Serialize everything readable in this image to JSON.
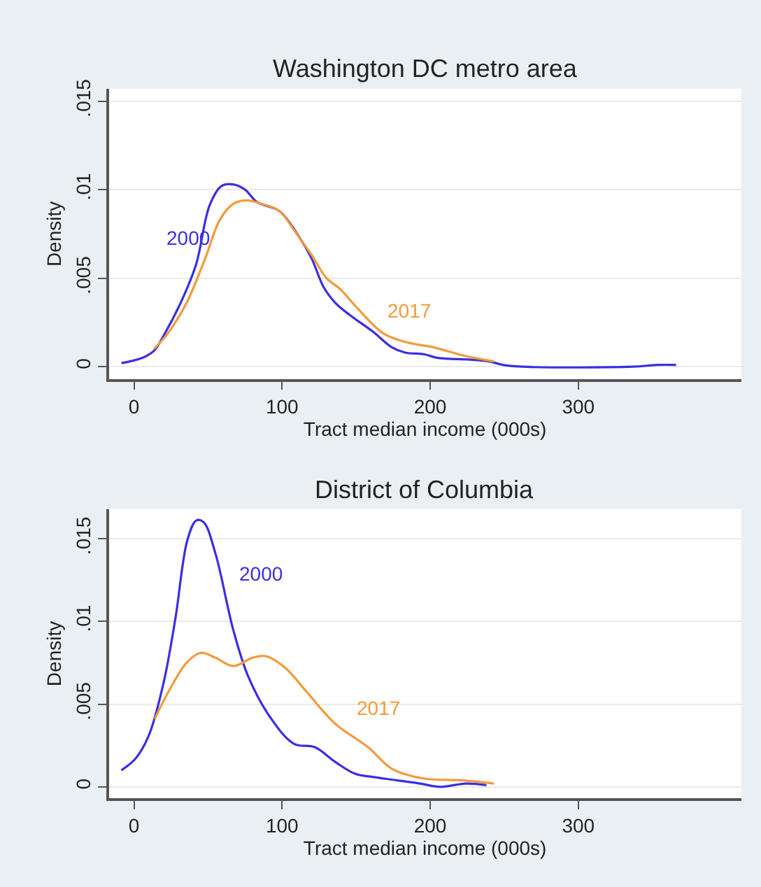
{
  "chart_data": [
    {
      "type": "line",
      "title": "Washington DC metro area",
      "xlabel": "Tract median income (000s)",
      "ylabel": "Density",
      "xlim": [
        -17,
        410
      ],
      "ylim": [
        -0.0007,
        0.0157
      ],
      "xticks": [
        0,
        100,
        200,
        300
      ],
      "yticks": [
        {
          "value": 0,
          "label": "0"
        },
        {
          "value": 0.005,
          "label": ".005"
        },
        {
          "value": 0.01,
          "label": ".01"
        },
        {
          "value": 0.015,
          "label": ".015"
        }
      ],
      "grid": "y",
      "series": [
        {
          "name": "2000",
          "color": "#3b2ee0",
          "x": [
            -8.5,
            5.7,
            13.5,
            21,
            32,
            42,
            51,
            59,
            67,
            75,
            83,
            98,
            111,
            120,
            128,
            136,
            146,
            161,
            174,
            183,
            196,
            205,
            227,
            240,
            249,
            262,
            337,
            353,
            366
          ],
          "values": [
            0.0002,
            0.0005,
            0.0009,
            0.0019,
            0.0037,
            0.0058,
            0.0091,
            0.0102,
            0.0103,
            0.01,
            0.0093,
            0.0088,
            0.0074,
            0.0061,
            0.0045,
            0.0036,
            0.0029,
            0.002,
            0.0011,
            0.0008,
            0.0007,
            0.0005,
            0.0004,
            0.0003,
            0.0001,
            0,
            0,
            0.0001,
            0.0001
          ]
        },
        {
          "name": "2017",
          "color": "#f39a3a",
          "x": [
            13.5,
            23,
            35.5,
            48,
            58,
            67,
            76,
            86,
            98,
            109,
            120,
            130,
            139,
            152,
            168,
            183,
            202,
            224,
            243
          ],
          "values": [
            0.001,
            0.0019,
            0.0036,
            0.0061,
            0.0083,
            0.0092,
            0.0094,
            0.0092,
            0.0088,
            0.0076,
            0.0063,
            0.005,
            0.0044,
            0.0032,
            0.0019,
            0.0014,
            0.0011,
            0.0006,
            0.0003
          ]
        }
      ]
    },
    {
      "type": "line",
      "title": "District of Columbia",
      "xlabel": "Tract median income (000s)",
      "ylabel": "Density",
      "xlim": [
        -17,
        410
      ],
      "ylim": [
        -0.0007,
        0.0168
      ],
      "xticks": [
        0,
        100,
        200,
        300
      ],
      "yticks": [
        {
          "value": 0,
          "label": "0"
        },
        {
          "value": 0.005,
          "label": ".005"
        },
        {
          "value": 0.01,
          "label": ".01"
        },
        {
          "value": 0.015,
          "label": ".015"
        }
      ],
      "grid": "y",
      "series": [
        {
          "name": "2000",
          "color": "#3b2ee0",
          "x": [
            -8.5,
            1,
            10,
            20,
            28,
            36,
            42,
            47,
            55,
            67,
            77,
            92,
            108,
            122,
            136,
            149,
            161,
            177,
            193,
            207,
            224,
            238
          ],
          "values": [
            0.001,
            0.0017,
            0.0031,
            0.0063,
            0.0102,
            0.0149,
            0.0161,
            0.016,
            0.0141,
            0.0095,
            0.0067,
            0.0042,
            0.0026,
            0.0024,
            0.0015,
            0.0008,
            0.0006,
            0.0004,
            0.0002,
            0,
            0.0002,
            0.0001
          ]
        },
        {
          "name": "2017",
          "color": "#f39a3a",
          "x": [
            14,
            23,
            35.5,
            45,
            55,
            67,
            80,
            89,
            102,
            117,
            136,
            158,
            174,
            196,
            221,
            243
          ],
          "values": [
            0.0041,
            0.0057,
            0.0075,
            0.0081,
            0.0078,
            0.0073,
            0.0078,
            0.0079,
            0.0072,
            0.0057,
            0.0038,
            0.0024,
            0.0011,
            0.0005,
            0.0004,
            0.0002
          ]
        }
      ]
    }
  ]
}
